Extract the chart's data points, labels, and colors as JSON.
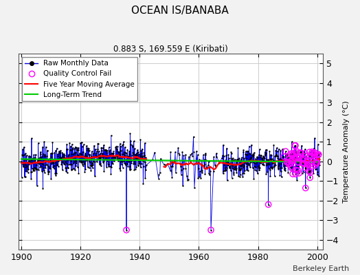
{
  "title": "OCEAN IS/BANABA",
  "subtitle": "0.883 S, 169.559 E (Kiribati)",
  "ylabel": "Temperature Anomaly (°C)",
  "xlim": [
    1899,
    2002
  ],
  "ylim": [
    -4.5,
    5.5
  ],
  "yticks": [
    -4,
    -3,
    -2,
    -1,
    0,
    1,
    2,
    3,
    4,
    5
  ],
  "xticks": [
    1900,
    1920,
    1940,
    1960,
    1980,
    2000
  ],
  "line_color": "#0000dd",
  "marker_color": "#000000",
  "moving_avg_color": "#ff0000",
  "trend_color": "#00cc00",
  "qc_fail_color": "#ff00ff",
  "background_color": "#f2f2f2",
  "plot_bg_color": "#ffffff",
  "grid_color": "#cccccc",
  "watermark": "Berkeley Earth",
  "seed": 17
}
